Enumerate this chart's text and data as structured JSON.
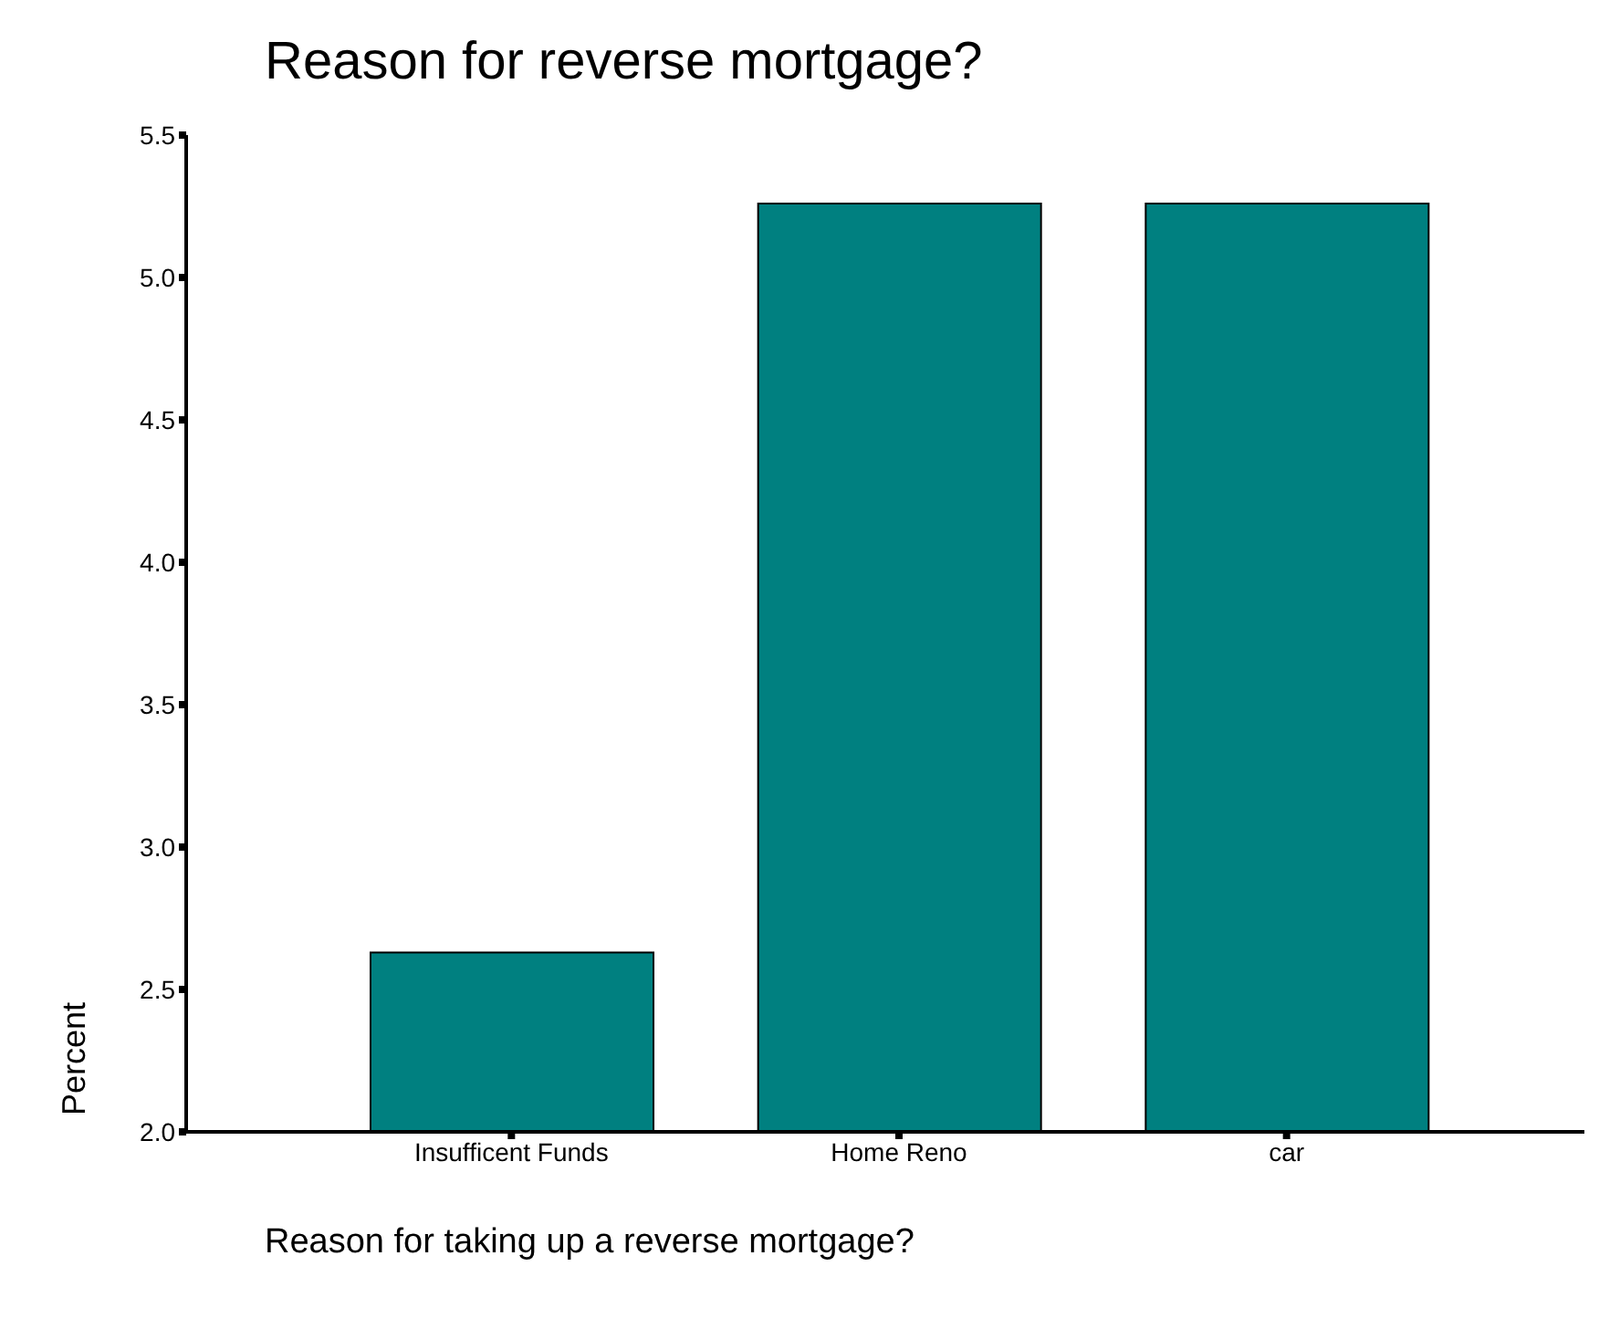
{
  "chart_data": {
    "type": "bar",
    "title": "Reason for reverse mortgage?",
    "xlabel": "Reason for taking up a reverse mortgage?",
    "ylabel": "Percent",
    "categories": [
      "Insufficent Funds",
      "Home Reno",
      "car"
    ],
    "values": [
      2.63,
      5.26,
      5.26
    ],
    "color": "#008080",
    "ylim": [
      2.0,
      5.5
    ],
    "yticks": [
      {
        "value": 2.0,
        "label": "2.0"
      },
      {
        "value": 2.5,
        "label": "2.5"
      },
      {
        "value": 3.0,
        "label": "3.0"
      },
      {
        "value": 3.5,
        "label": "3.5"
      },
      {
        "value": 4.0,
        "label": "4.0"
      },
      {
        "value": 4.5,
        "label": "4.5"
      },
      {
        "value": 5.0,
        "label": "5.0"
      },
      {
        "value": 5.5,
        "label": "5.5"
      }
    ],
    "grid": false,
    "legend": false
  }
}
